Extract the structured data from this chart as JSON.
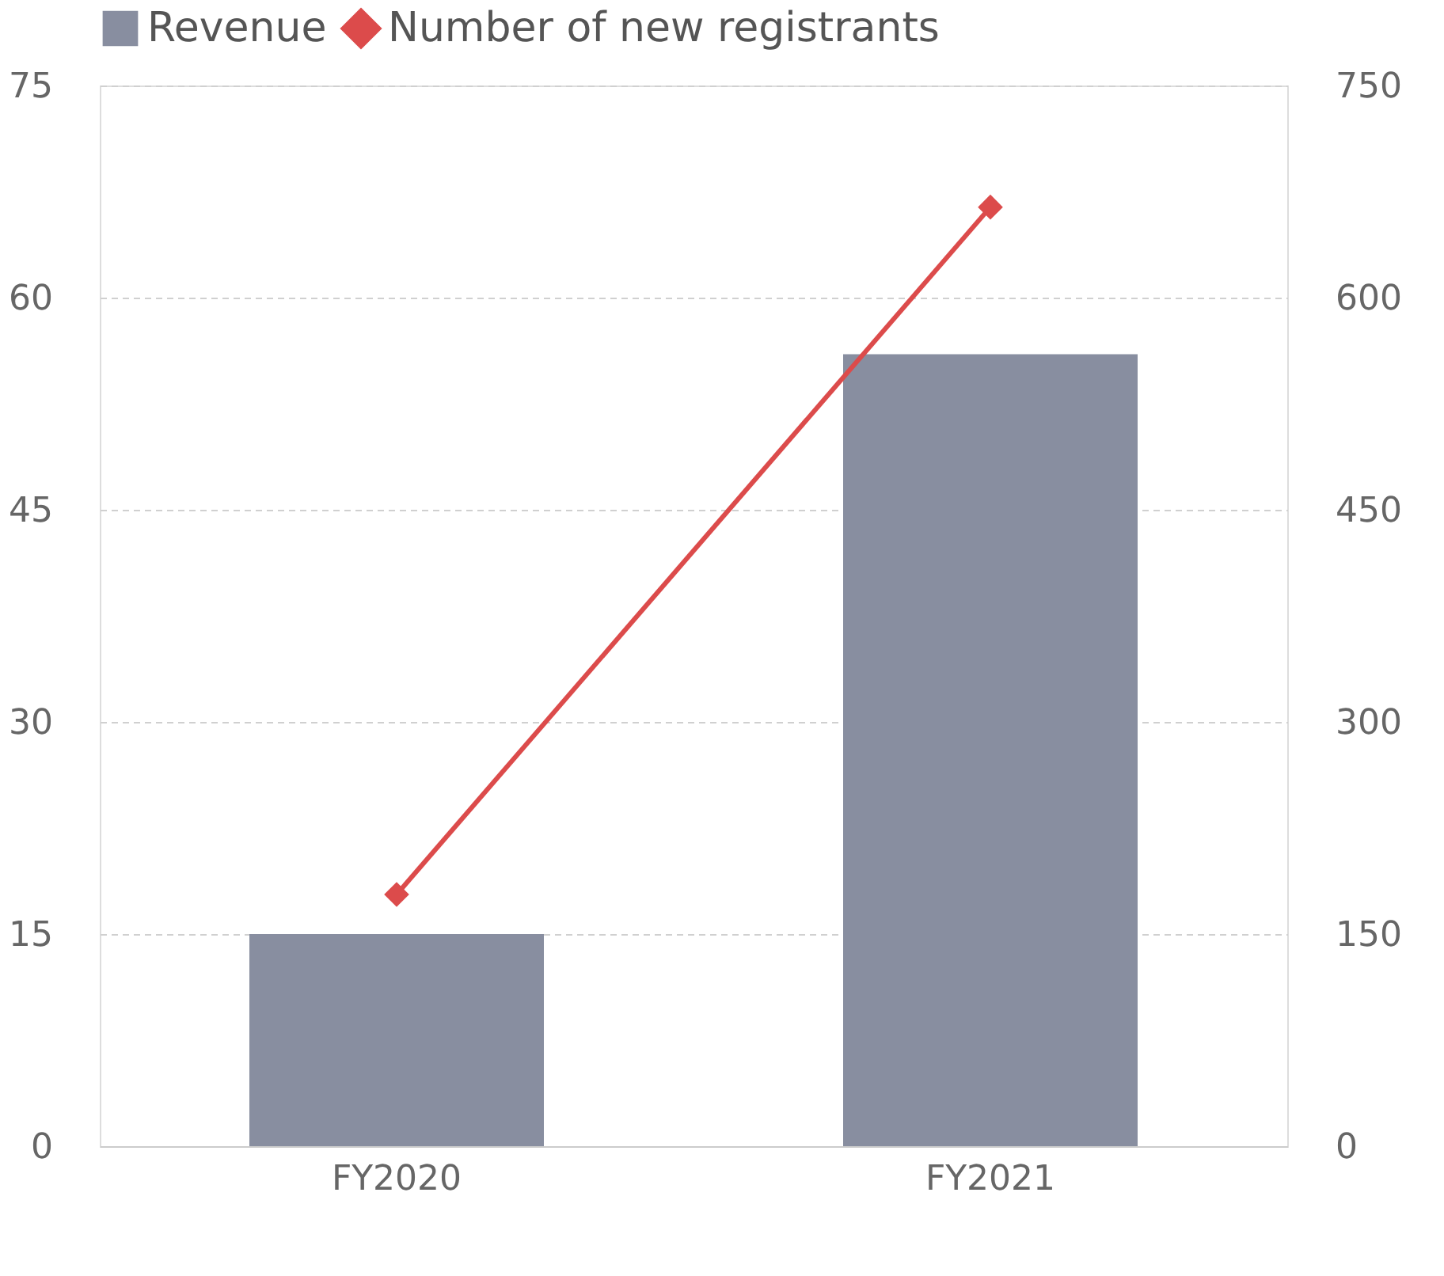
{
  "chart_data": {
    "type": "bar",
    "categories": [
      "FY2020",
      "FY2021"
    ],
    "series": [
      {
        "name": "Revenue",
        "color": "#888ea0",
        "values": [
          15,
          56
        ]
      },
      {
        "name": "Number of new registrants",
        "type": "line",
        "axis": "y2",
        "color": "#dc4b4b",
        "marker": "diamond",
        "values": [
          178,
          664
        ]
      }
    ],
    "ylim": [
      0,
      75
    ],
    "yticks": [
      0,
      15,
      30,
      45,
      60,
      75
    ],
    "y2lim": [
      0,
      750
    ],
    "y2ticks": [
      0,
      150,
      300,
      450,
      600,
      750
    ],
    "grid": "y",
    "legend": "top"
  }
}
